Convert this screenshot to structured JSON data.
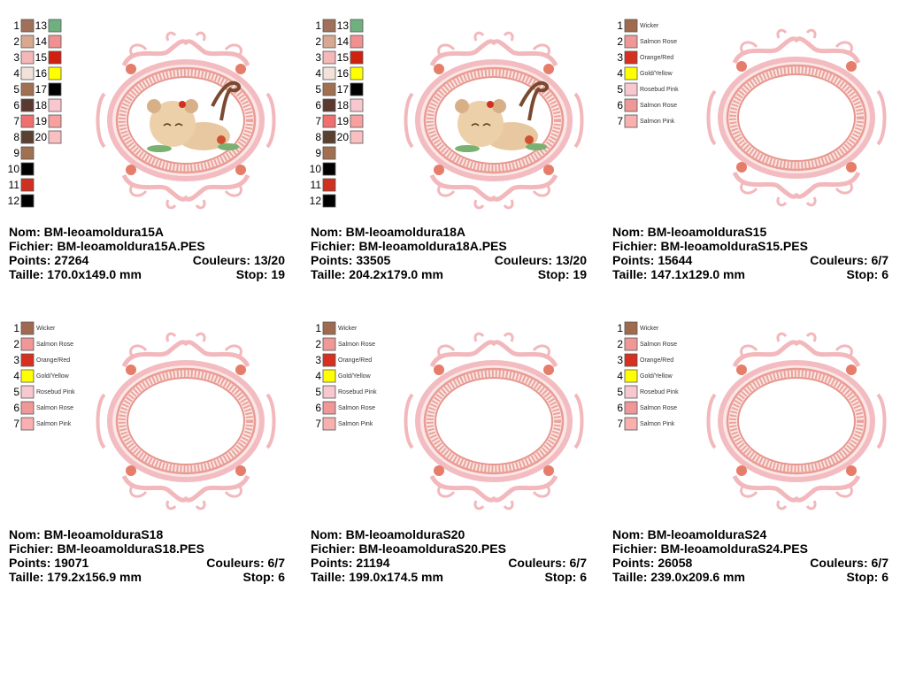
{
  "designs": [
    {
      "colors": [
        {
          "n": 1,
          "color": "#a0705a"
        },
        {
          "n": 2,
          "color": "#d8a890"
        },
        {
          "n": 3,
          "color": "#f4b8b8"
        },
        {
          "n": 4,
          "color": "#f2e2da"
        },
        {
          "n": 5,
          "color": "#a07050"
        },
        {
          "n": 6,
          "color": "#5a3a30"
        },
        {
          "n": 7,
          "color": "#f07070"
        },
        {
          "n": 8,
          "color": "#5a4030"
        },
        {
          "n": 9,
          "color": "#a07050"
        },
        {
          "n": 10,
          "color": "#000000"
        },
        {
          "n": 11,
          "color": "#d03020"
        },
        {
          "n": 12,
          "color": "#000000"
        },
        {
          "n": 13,
          "color": "#70b080"
        },
        {
          "n": 14,
          "color": "#f09090"
        },
        {
          "n": 15,
          "color": "#d02010"
        },
        {
          "n": 16,
          "color": "#ffff00"
        },
        {
          "n": 17,
          "color": "#000000"
        },
        {
          "n": 18,
          "color": "#f8c8d0"
        },
        {
          "n": 19,
          "color": "#f8a0a0"
        },
        {
          "n": 20,
          "color": "#f8c0c0"
        }
      ],
      "nom": "Nom: BM-leoamoldura15A",
      "fichier": "Fichier: BM-leoamoldura15A.PES",
      "points": "Points: 27264",
      "couleurs": "Couleurs: 13/20",
      "taille": "Taille: 170.0x149.0 mm",
      "stop": "Stop: 19"
    },
    {
      "colors": [
        {
          "n": 1,
          "color": "#a0705a"
        },
        {
          "n": 2,
          "color": "#d8a890"
        },
        {
          "n": 3,
          "color": "#f4b8b8"
        },
        {
          "n": 4,
          "color": "#f2e2da"
        },
        {
          "n": 5,
          "color": "#a07050"
        },
        {
          "n": 6,
          "color": "#5a3a30"
        },
        {
          "n": 7,
          "color": "#f07070"
        },
        {
          "n": 8,
          "color": "#5a4030"
        },
        {
          "n": 9,
          "color": "#a07050"
        },
        {
          "n": 10,
          "color": "#000000"
        },
        {
          "n": 11,
          "color": "#d03020"
        },
        {
          "n": 12,
          "color": "#000000"
        },
        {
          "n": 13,
          "color": "#70b080"
        },
        {
          "n": 14,
          "color": "#f09090"
        },
        {
          "n": 15,
          "color": "#d02010"
        },
        {
          "n": 16,
          "color": "#ffff00"
        },
        {
          "n": 17,
          "color": "#000000"
        },
        {
          "n": 18,
          "color": "#f8c8d0"
        },
        {
          "n": 19,
          "color": "#f8a0a0"
        },
        {
          "n": 20,
          "color": "#f8c0c0"
        }
      ],
      "nom": "Nom: BM-leoamoldura18A",
      "fichier": "Fichier: BM-leoamoldura18A.PES",
      "points": "Points: 33505",
      "couleurs": "Couleurs: 13/20",
      "taille": "Taille: 204.2x179.0 mm",
      "stop": "Stop: 19"
    },
    {
      "colors": [
        {
          "n": 1,
          "color": "#a06a50",
          "name": "Wicker"
        },
        {
          "n": 2,
          "color": "#f09898",
          "name": "Salmon Rose"
        },
        {
          "n": 3,
          "color": "#d83020",
          "name": "Orange/Red"
        },
        {
          "n": 4,
          "color": "#ffff00",
          "name": "Gold/Yellow"
        },
        {
          "n": 5,
          "color": "#f8c8d0",
          "name": "Rosebud Pink"
        },
        {
          "n": 6,
          "color": "#f09898",
          "name": "Salmon Rose"
        },
        {
          "n": 7,
          "color": "#f8b0b0",
          "name": "Salmon Pink"
        }
      ],
      "nom": "Nom: BM-leoamolduraS15",
      "fichier": "Fichier: BM-leoamolduraS15.PES",
      "points": "Points: 15644",
      "couleurs": "Couleurs: 6/7",
      "taille": "Taille: 147.1x129.0 mm",
      "stop": "Stop: 6"
    },
    {
      "colors": [
        {
          "n": 1,
          "color": "#a06a50",
          "name": "Wicker"
        },
        {
          "n": 2,
          "color": "#f09898",
          "name": "Salmon Rose"
        },
        {
          "n": 3,
          "color": "#d83020",
          "name": "Orange/Red"
        },
        {
          "n": 4,
          "color": "#ffff00",
          "name": "Gold/Yellow"
        },
        {
          "n": 5,
          "color": "#f8c8d0",
          "name": "Rosebud Pink"
        },
        {
          "n": 6,
          "color": "#f09898",
          "name": "Salmon Rose"
        },
        {
          "n": 7,
          "color": "#f8b0b0",
          "name": "Salmon Pink"
        }
      ],
      "nom": "Nom: BM-leoamolduraS18",
      "fichier": "Fichier: BM-leoamolduraS18.PES",
      "points": "Points: 19071",
      "couleurs": "Couleurs: 6/7",
      "taille": "Taille: 179.2x156.9 mm",
      "stop": "Stop: 6"
    },
    {
      "colors": [
        {
          "n": 1,
          "color": "#a06a50",
          "name": "Wicker"
        },
        {
          "n": 2,
          "color": "#f09898",
          "name": "Salmon Rose"
        },
        {
          "n": 3,
          "color": "#d83020",
          "name": "Orange/Red"
        },
        {
          "n": 4,
          "color": "#ffff00",
          "name": "Gold/Yellow"
        },
        {
          "n": 5,
          "color": "#f8c8d0",
          "name": "Rosebud Pink"
        },
        {
          "n": 6,
          "color": "#f09898",
          "name": "Salmon Rose"
        },
        {
          "n": 7,
          "color": "#f8b0b0",
          "name": "Salmon Pink"
        }
      ],
      "nom": "Nom: BM-leoamolduraS20",
      "fichier": "Fichier: BM-leoamolduraS20.PES",
      "points": "Points: 21194",
      "couleurs": "Couleurs: 6/7",
      "taille": "Taille: 199.0x174.5 mm",
      "stop": "Stop: 6"
    },
    {
      "colors": [
        {
          "n": 1,
          "color": "#a06a50",
          "name": "Wicker"
        },
        {
          "n": 2,
          "color": "#f09898",
          "name": "Salmon Rose"
        },
        {
          "n": 3,
          "color": "#d83020",
          "name": "Orange/Red"
        },
        {
          "n": 4,
          "color": "#ffff00",
          "name": "Gold/Yellow"
        },
        {
          "n": 5,
          "color": "#f8c8d0",
          "name": "Rosebud Pink"
        },
        {
          "n": 6,
          "color": "#f09898",
          "name": "Salmon Rose"
        },
        {
          "n": 7,
          "color": "#f8b0b0",
          "name": "Salmon Pink"
        }
      ],
      "nom": "Nom: BM-leoamolduraS24",
      "fichier": "Fichier: BM-leoamolduraS24.PES",
      "points": "Points: 26058",
      "couleurs": "Couleurs: 6/7",
      "taille": "Taille: 239.0x209.6 mm",
      "stop": "Stop: 6"
    }
  ]
}
